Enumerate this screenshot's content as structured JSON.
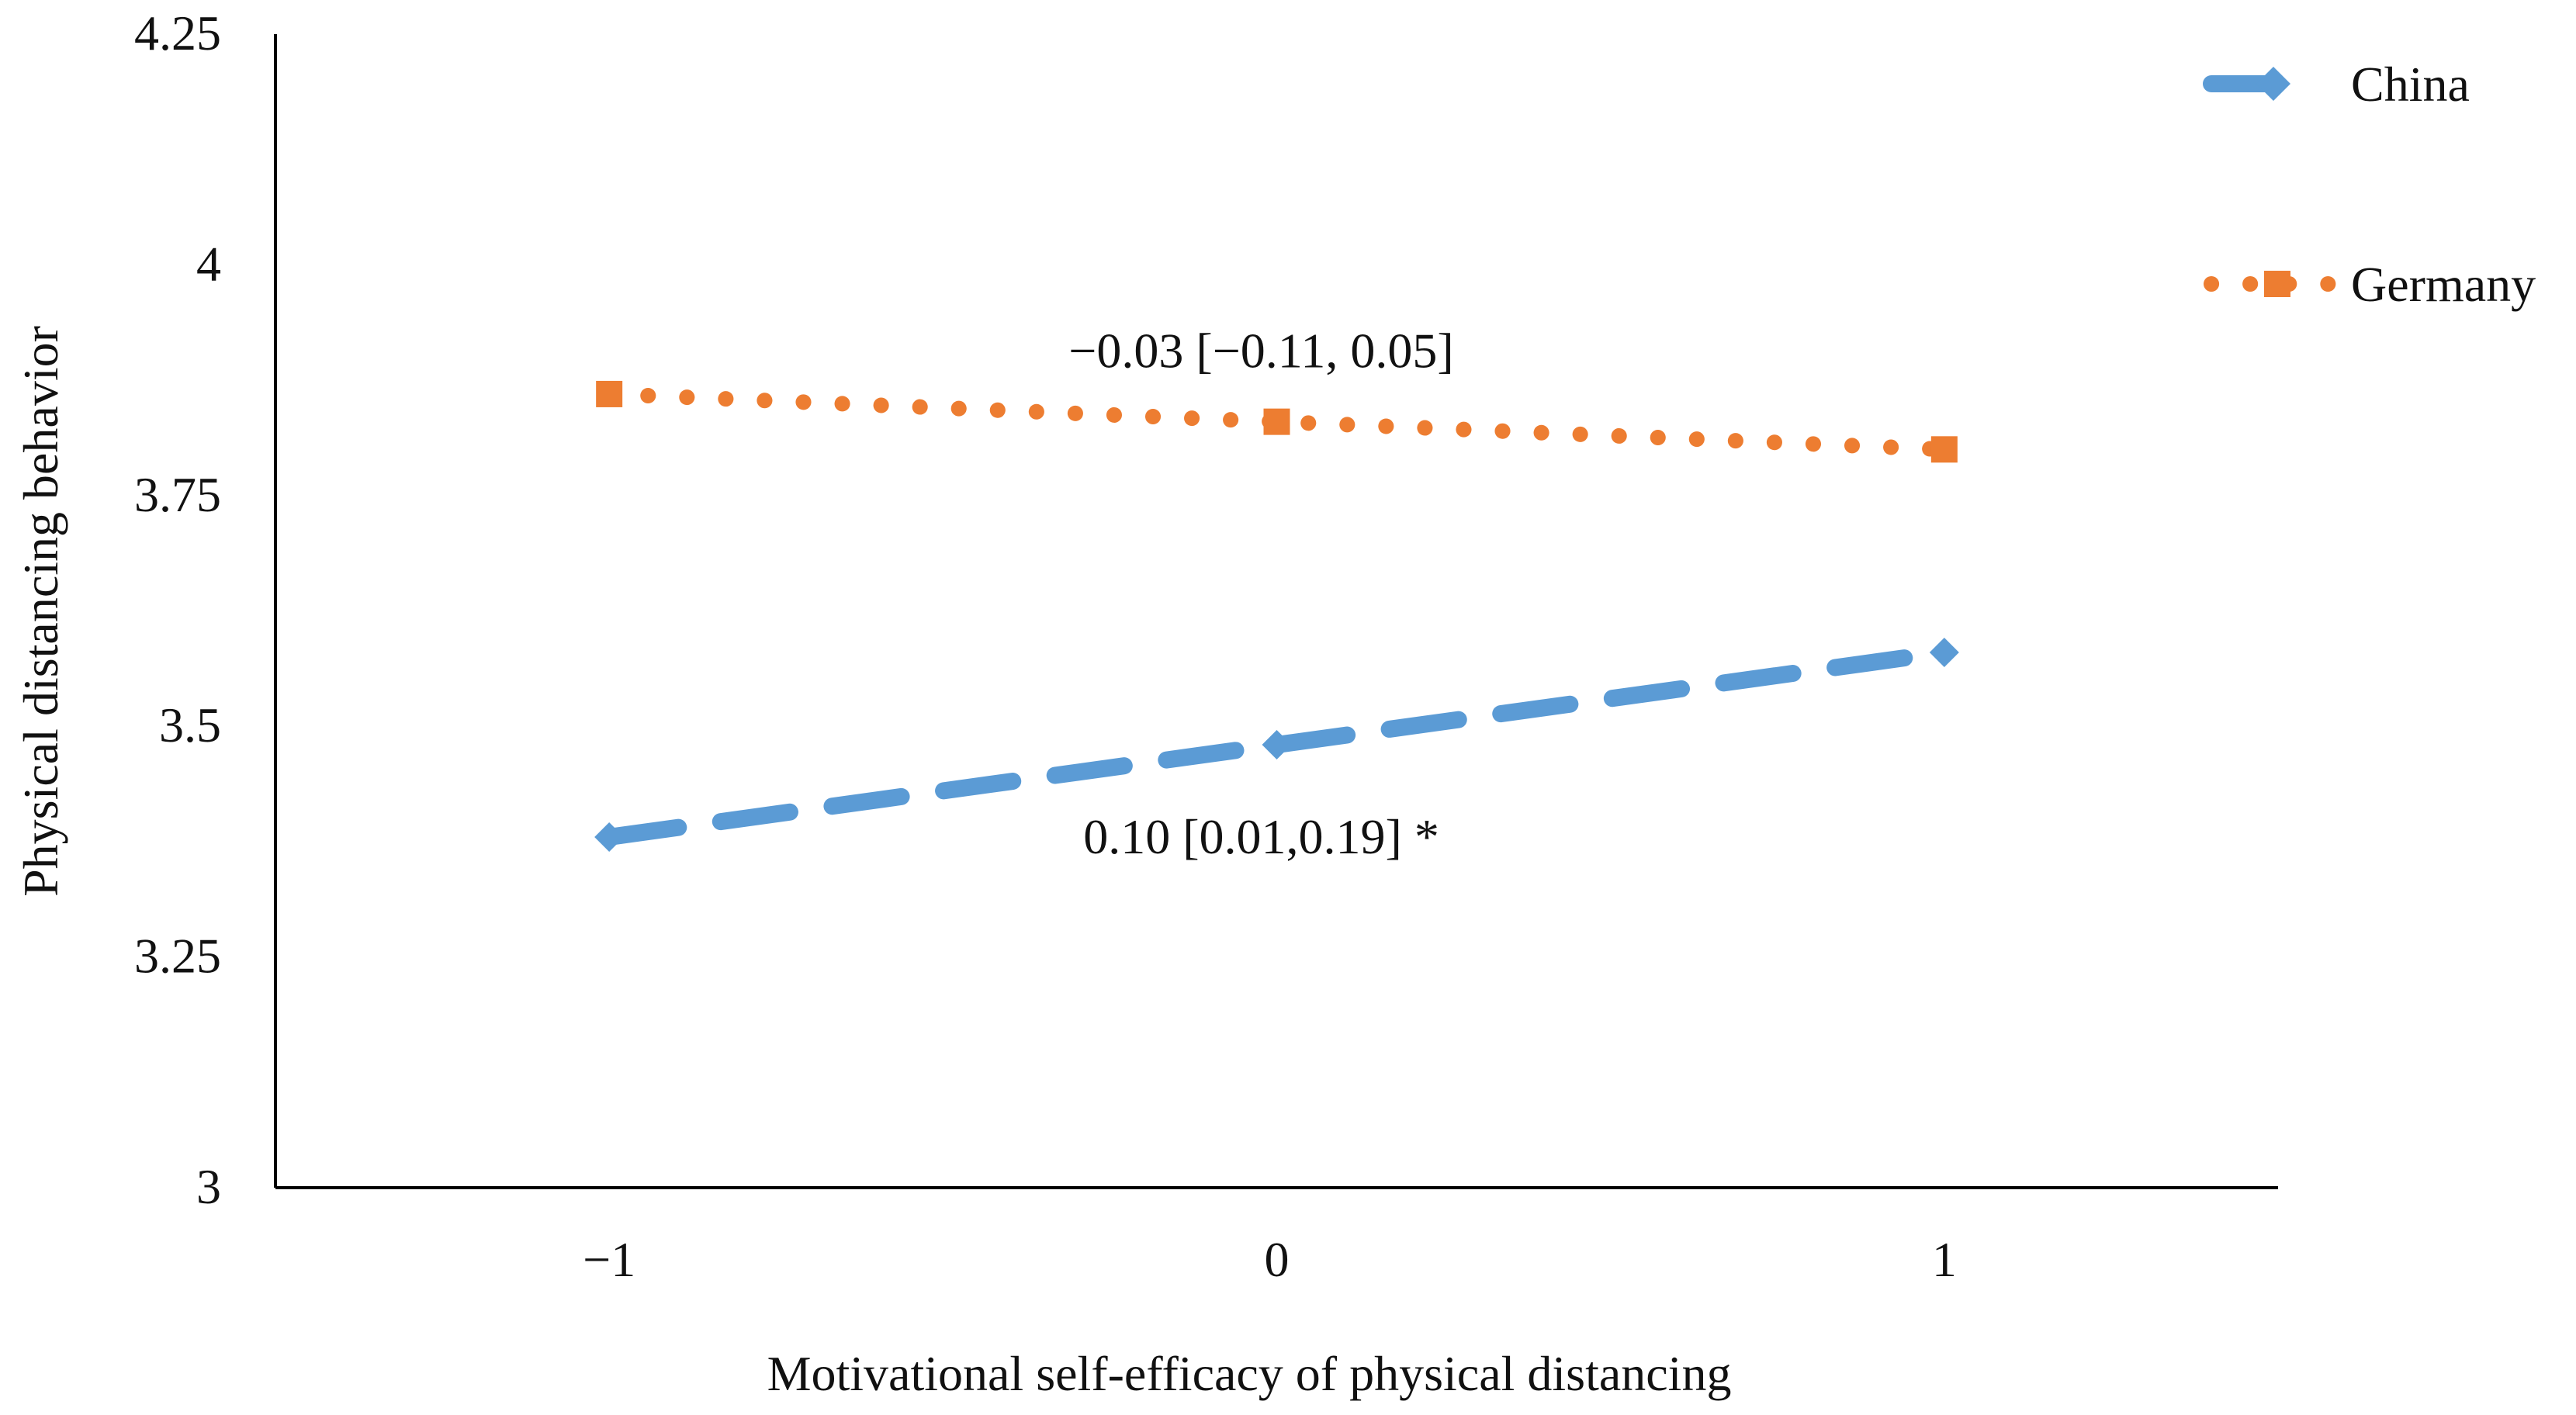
{
  "chart_data": {
    "type": "line",
    "title": "",
    "xlabel": "Motivational self-efficacy of physical distancing",
    "ylabel": "Physical distancing behavior",
    "x": [
      -1,
      0,
      1
    ],
    "x_tick_labels": [
      "−1",
      "0",
      "1"
    ],
    "xlim": [
      -1.5,
      1.5
    ],
    "ylim": [
      3,
      4.25
    ],
    "y_ticks": [
      3,
      3.25,
      3.5,
      3.75,
      4,
      4.25
    ],
    "y_tick_labels": [
      "3",
      "3.25",
      "3.5",
      "3.75",
      "4",
      "4.25"
    ],
    "grid": false,
    "legend_position": "top-right",
    "series": [
      {
        "name": "China",
        "values": [
          3.38,
          3.48,
          3.58
        ],
        "color": "#5B9BD5",
        "line_style": "dashed",
        "marker": "diamond"
      },
      {
        "name": "Germany",
        "values": [
          3.86,
          3.83,
          3.8
        ],
        "color": "#ED7D31",
        "line_style": "dotted",
        "marker": "square"
      }
    ],
    "annotations": [
      {
        "text": "−0.03 [−0.11, 0.05]",
        "series": "Germany",
        "x": 0
      },
      {
        "text": "0.10 [0.01,0.19] *",
        "series": "China",
        "x": 0
      }
    ]
  }
}
